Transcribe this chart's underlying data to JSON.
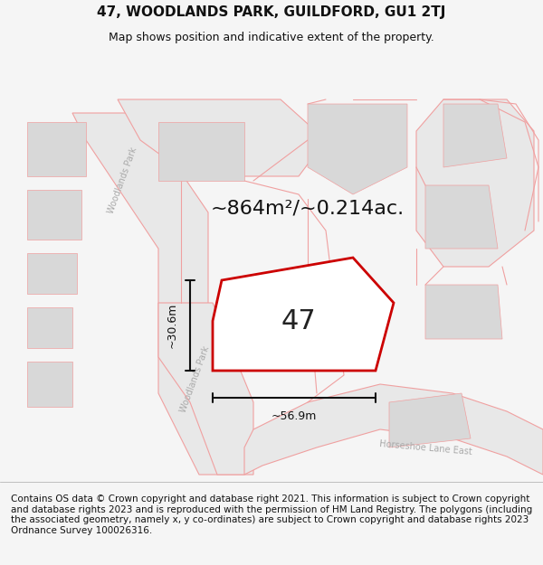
{
  "title": "47, WOODLANDS PARK, GUILDFORD, GU1 2TJ",
  "subtitle": "Map shows position and indicative extent of the property.",
  "footer": "Contains OS data © Crown copyright and database right 2021. This information is subject to Crown copyright and database rights 2023 and is reproduced with the permission of HM Land Registry. The polygons (including the associated geometry, namely x, y co-ordinates) are subject to Crown copyright and database rights 2023 Ordnance Survey 100026316.",
  "area_label": "~864m²/~0.214ac.",
  "property_number": "47",
  "dim_width": "~56.9m",
  "dim_height": "~30.6m",
  "road_label_1": "Woodlands Park",
  "road_label_2": "Woodlands Park",
  "road_label_horseshoe": "Horseshoe Lane East",
  "bg_color": "#f5f5f5",
  "map_bg": "#ffffff",
  "header_bg": "#ffffff",
  "footer_bg": "#ffffff",
  "road_fill": "#e8e8e8",
  "building_fill": "#d8d8d8",
  "road_stroke": "#f0a0a0",
  "property_stroke": "#cc0000",
  "property_fill": "#ffffff",
  "dim_color": "#111111",
  "title_fontsize": 11,
  "subtitle_fontsize": 9,
  "footer_fontsize": 7.5,
  "area_fontsize": 16,
  "number_fontsize": 22,
  "road_fontsize": 7
}
